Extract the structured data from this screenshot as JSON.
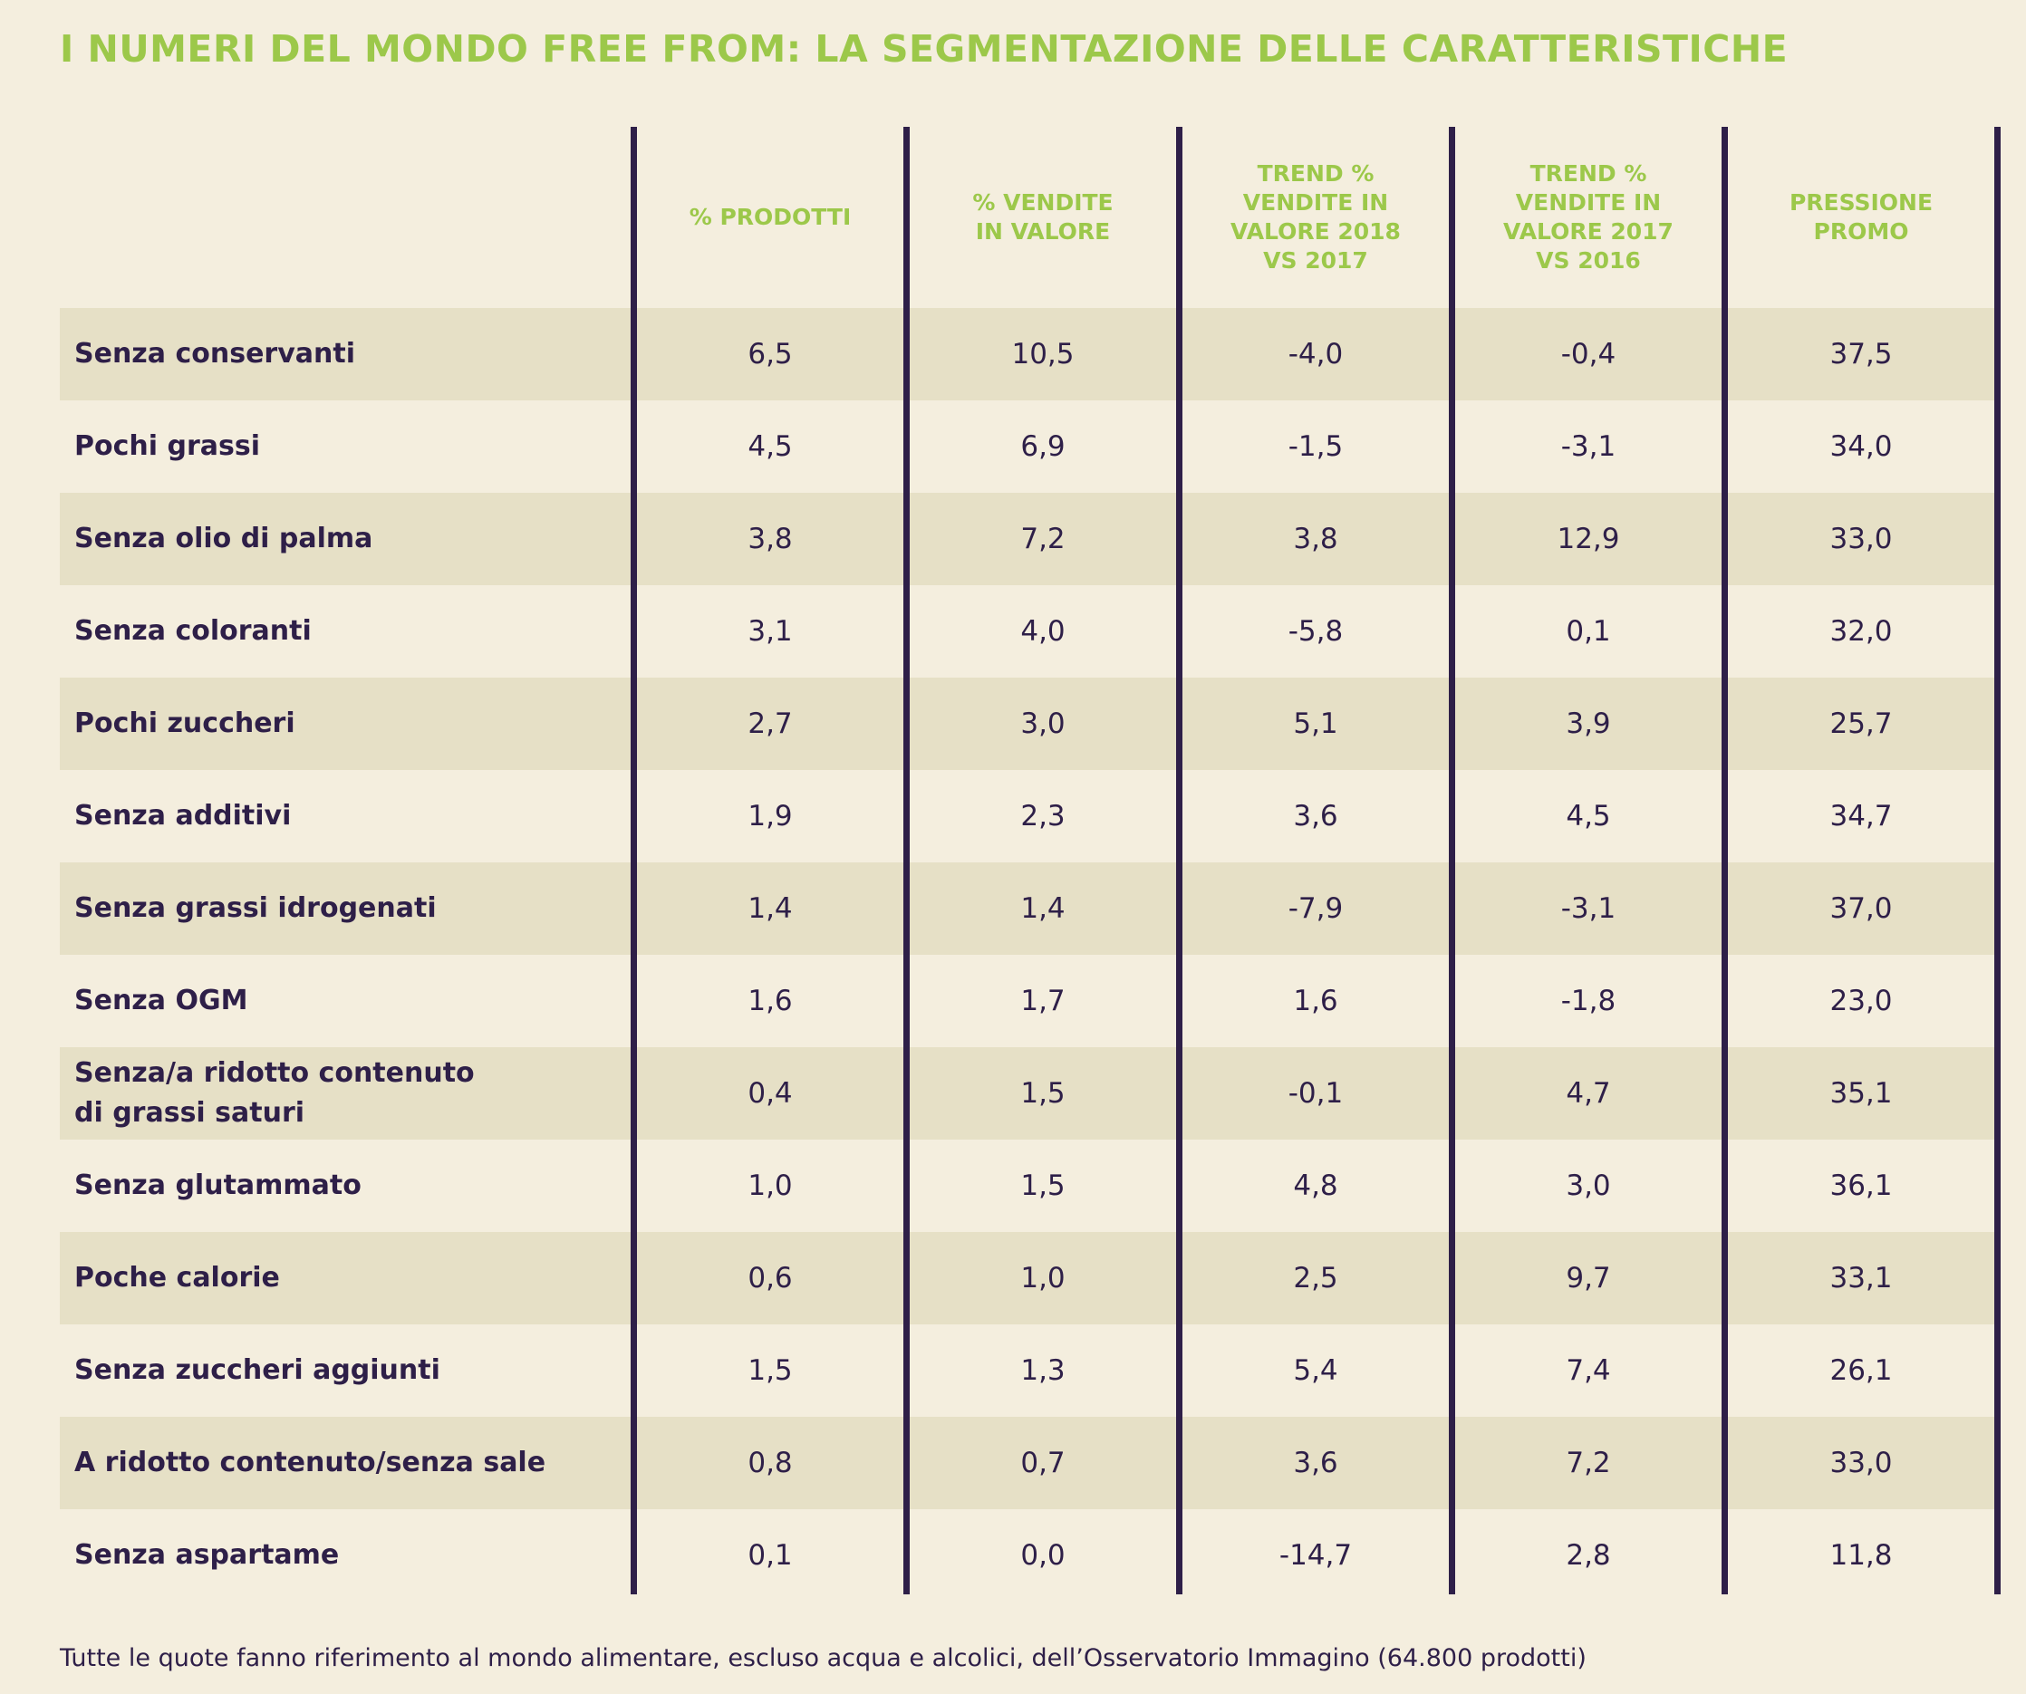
{
  "title": "I NUMERI DEL MONDO FREE FROM: LA SEGMENTAZIONE DELLE CARATTERISTICHE",
  "footnote": "Tutte le quote fanno riferimento al mondo alimentare, escluso acqua e alcolici, dell’Osservatorio Immagino (64.800 prodotti)",
  "chart_data": {
    "type": "table",
    "title": "I NUMERI DEL MONDO FREE FROM: LA SEGMENTAZIONE DELLE CARATTERISTICHE",
    "columns": [
      "% PRODOTTI",
      "% VENDITE\nIN VALORE",
      "TREND %\nVENDITE IN\nVALORE 2018\nVS 2017",
      "TREND %\nVENDITE IN\nVALORE 2017\nVS 2016",
      "PRESSIONE\nPROMO"
    ],
    "rows": [
      {
        "label": "Senza conservanti",
        "values": [
          "6,5",
          "10,5",
          "-4,0",
          "-0,4",
          "37,5"
        ]
      },
      {
        "label": "Pochi grassi",
        "values": [
          "4,5",
          "6,9",
          "-1,5",
          "-3,1",
          "34,0"
        ]
      },
      {
        "label": "Senza olio di palma",
        "values": [
          "3,8",
          "7,2",
          "3,8",
          "12,9",
          "33,0"
        ]
      },
      {
        "label": "Senza coloranti",
        "values": [
          "3,1",
          "4,0",
          "-5,8",
          "0,1",
          "32,0"
        ]
      },
      {
        "label": "Pochi zuccheri",
        "values": [
          "2,7",
          "3,0",
          "5,1",
          "3,9",
          "25,7"
        ]
      },
      {
        "label": "Senza additivi",
        "values": [
          "1,9",
          "2,3",
          "3,6",
          "4,5",
          "34,7"
        ]
      },
      {
        "label": "Senza grassi idrogenati",
        "values": [
          "1,4",
          "1,4",
          "-7,9",
          "-3,1",
          "37,0"
        ]
      },
      {
        "label": "Senza OGM",
        "values": [
          "1,6",
          "1,7",
          "1,6",
          "-1,8",
          "23,0"
        ]
      },
      {
        "label": "Senza/a ridotto contenuto\ndi grassi saturi",
        "values": [
          "0,4",
          "1,5",
          "-0,1",
          "4,7",
          "35,1"
        ]
      },
      {
        "label": "Senza glutammato",
        "values": [
          "1,0",
          "1,5",
          "4,8",
          "3,0",
          "36,1"
        ]
      },
      {
        "label": "Poche calorie",
        "values": [
          "0,6",
          "1,0",
          "2,5",
          "9,7",
          "33,1"
        ]
      },
      {
        "label": "Senza zuccheri aggiunti",
        "values": [
          "1,5",
          "1,3",
          "5,4",
          "7,4",
          "26,1"
        ]
      },
      {
        "label": "A ridotto contenuto/senza sale",
        "values": [
          "0,8",
          "0,7",
          "3,6",
          "7,2",
          "33,0"
        ]
      },
      {
        "label": "Senza aspartame",
        "values": [
          "0,1",
          "0,0",
          "-14,7",
          "2,8",
          "11,8"
        ]
      }
    ]
  }
}
